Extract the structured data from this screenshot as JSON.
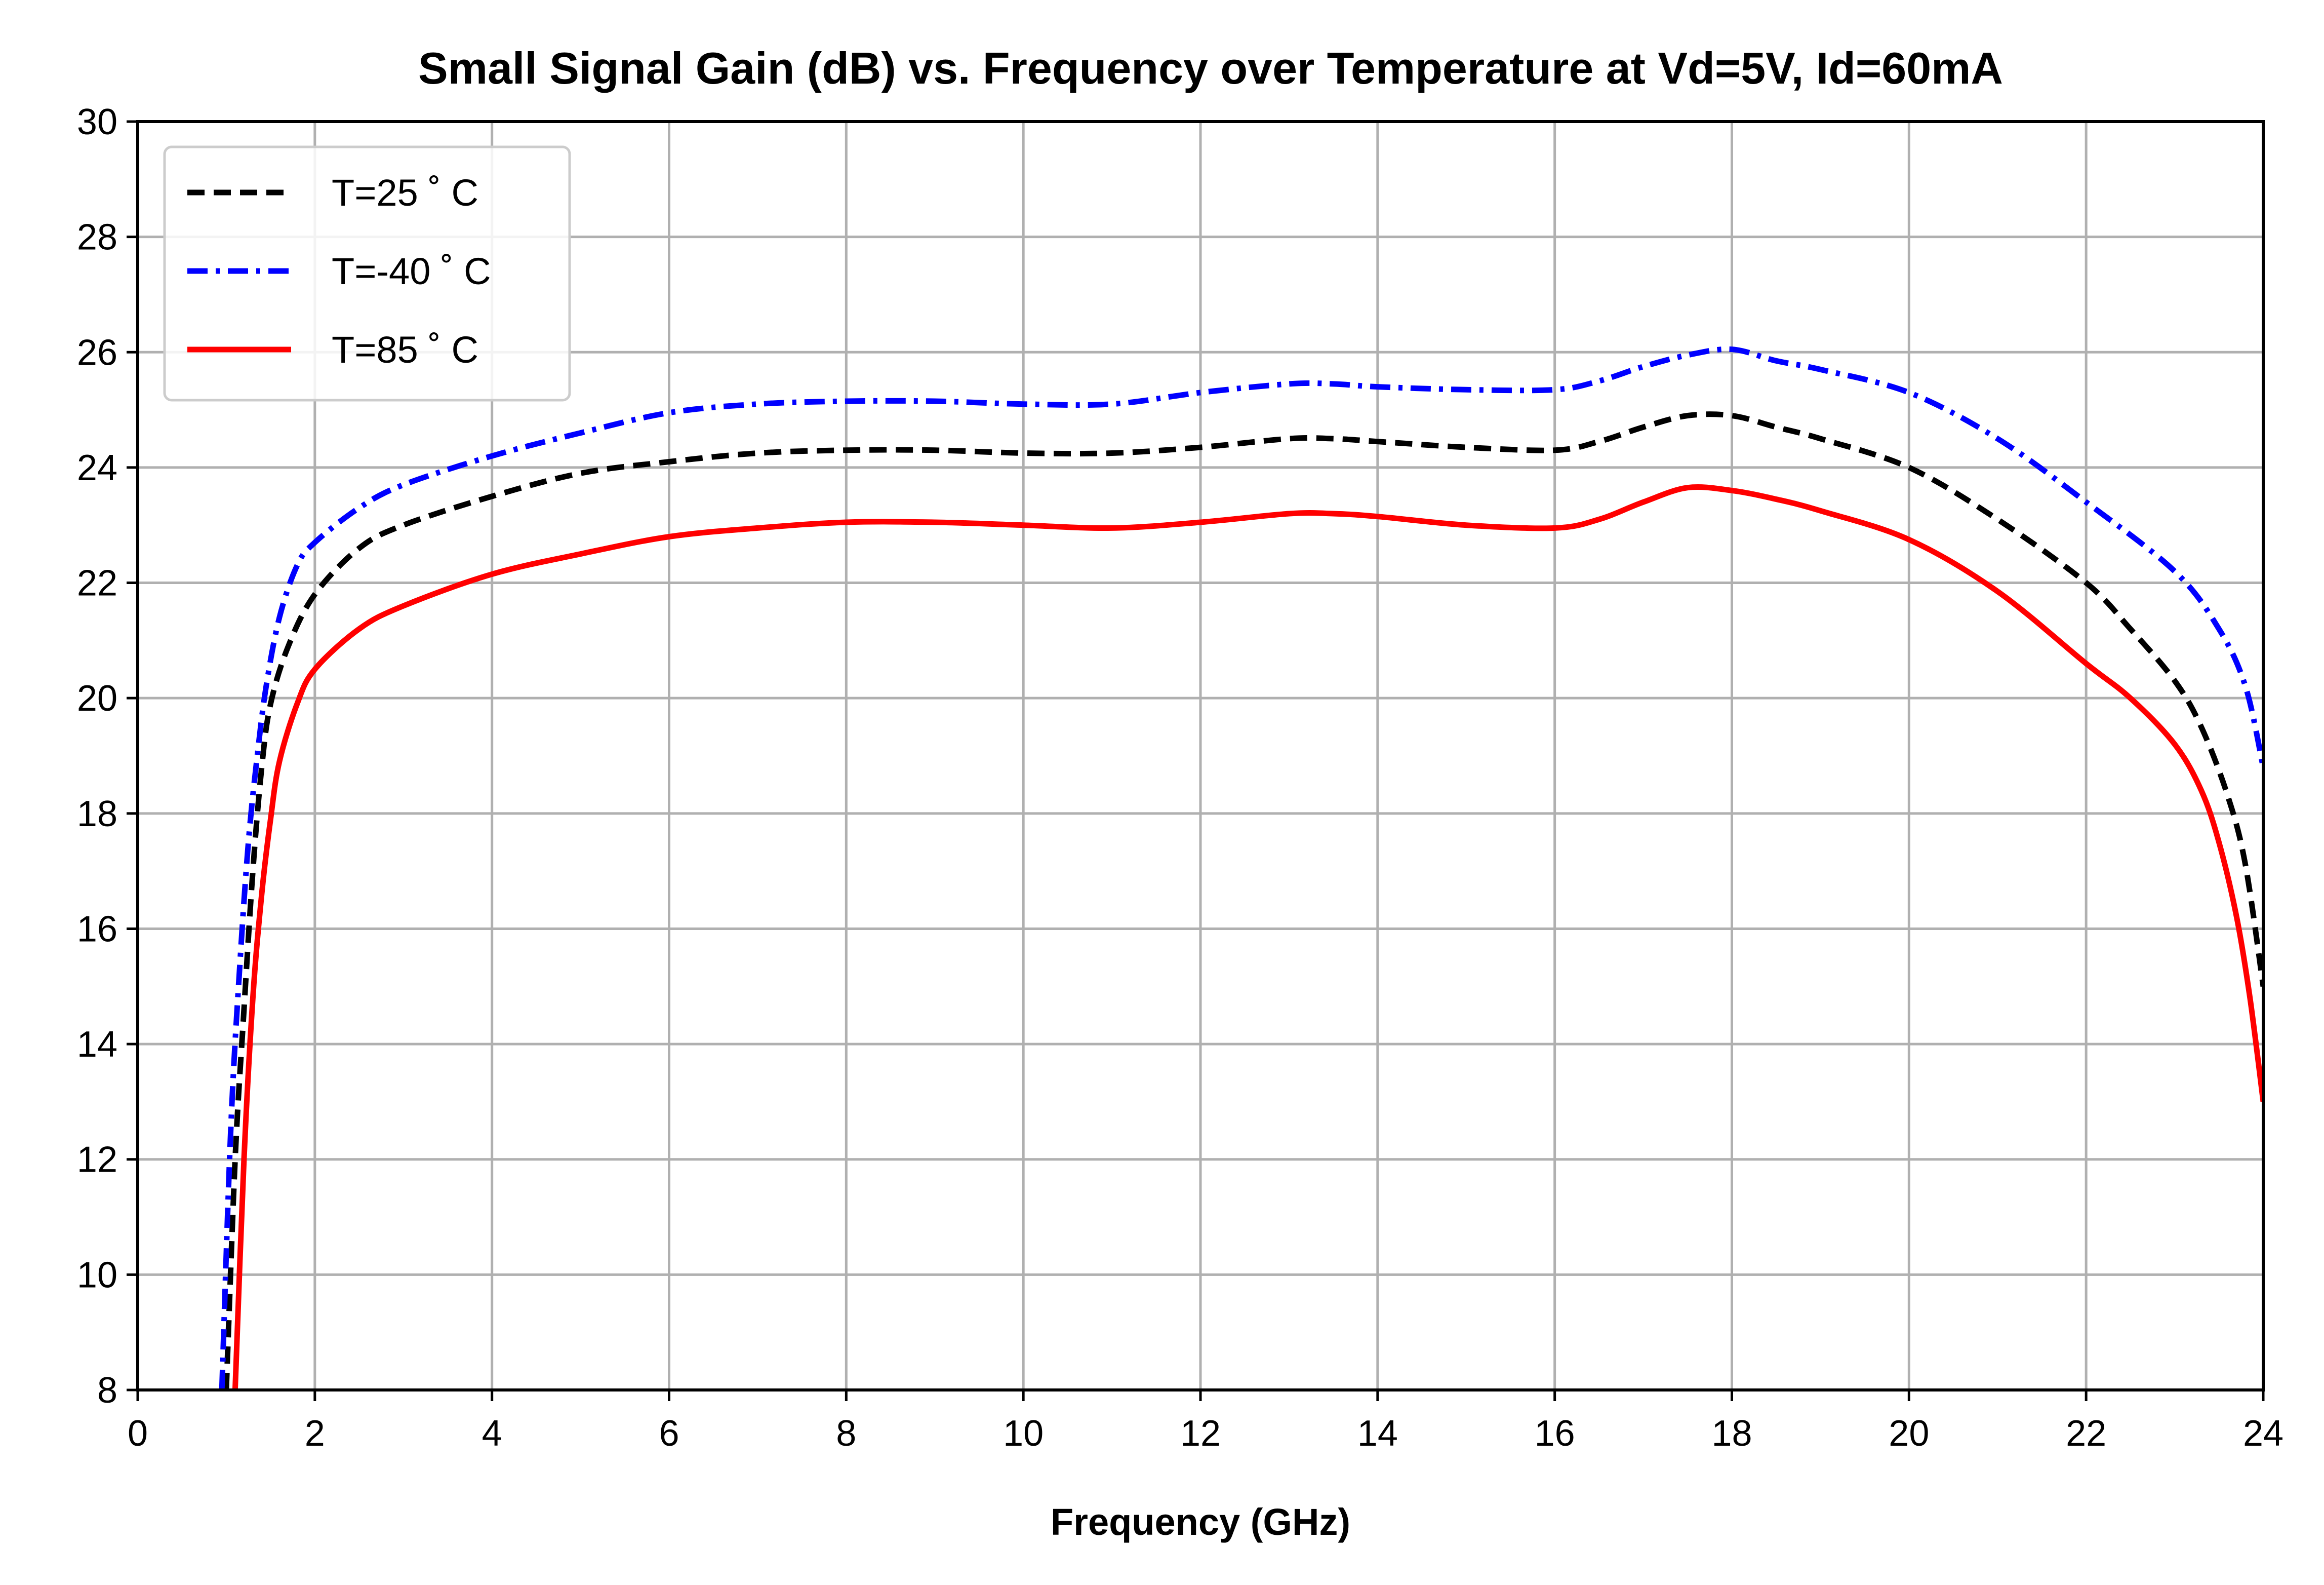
{
  "chart_data": {
    "type": "line",
    "title": "Small Signal Gain (dB) vs. Frequency over Temperature at Vd=5V, Id=60mA",
    "xlabel": "Frequency (GHz)",
    "ylabel": "",
    "xlim": [
      0,
      24
    ],
    "ylim": [
      8,
      30
    ],
    "xticks": [
      0,
      2,
      4,
      6,
      8,
      10,
      12,
      14,
      16,
      18,
      20,
      22,
      24
    ],
    "yticks": [
      8,
      10,
      12,
      14,
      16,
      18,
      20,
      22,
      24,
      26,
      28,
      30
    ],
    "grid": true,
    "legend_position": "top-left",
    "series": [
      {
        "name": "T=25 ˚ C",
        "color": "#000000",
        "line_style": "dashed",
        "x": [
          1.0,
          1.1,
          1.2,
          1.3,
          1.4,
          1.5,
          1.7,
          2.0,
          2.5,
          3.0,
          4.0,
          5.0,
          6.0,
          7.0,
          8.0,
          9.0,
          10.0,
          11.0,
          12.0,
          13.0,
          13.5,
          14.0,
          15.0,
          16.0,
          16.5,
          17.0,
          17.5,
          18.0,
          18.5,
          19.0,
          20.0,
          21.0,
          22.0,
          22.5,
          23.0,
          23.3,
          23.6,
          23.8,
          24.0
        ],
        "y": [
          8.0,
          12.0,
          14.6,
          17.0,
          18.8,
          19.9,
          20.9,
          21.8,
          22.6,
          23.0,
          23.5,
          23.9,
          24.1,
          24.25,
          24.3,
          24.3,
          24.25,
          24.25,
          24.35,
          24.5,
          24.5,
          24.45,
          24.35,
          24.3,
          24.45,
          24.7,
          24.9,
          24.9,
          24.7,
          24.5,
          24.0,
          23.1,
          22.0,
          21.2,
          20.3,
          19.5,
          18.3,
          17.1,
          15.0
        ]
      },
      {
        "name": "T=-40 ˚ C",
        "color": "#0000ff",
        "line_style": "dashdot",
        "x": [
          0.95,
          1.05,
          1.15,
          1.25,
          1.35,
          1.45,
          1.6,
          1.8,
          2.0,
          2.5,
          3.0,
          4.0,
          5.0,
          6.0,
          7.0,
          8.0,
          9.0,
          10.0,
          11.0,
          12.0,
          13.0,
          13.5,
          14.0,
          15.0,
          16.0,
          16.5,
          17.0,
          17.5,
          18.0,
          18.5,
          19.0,
          20.0,
          21.0,
          22.0,
          23.0,
          23.5,
          23.8,
          24.0
        ],
        "y": [
          8.0,
          12.5,
          15.3,
          17.5,
          19.0,
          20.2,
          21.4,
          22.3,
          22.7,
          23.3,
          23.7,
          24.2,
          24.6,
          24.95,
          25.1,
          25.15,
          25.15,
          25.1,
          25.1,
          25.3,
          25.45,
          25.45,
          25.4,
          25.35,
          25.35,
          25.5,
          25.75,
          25.95,
          26.05,
          25.85,
          25.7,
          25.3,
          24.5,
          23.4,
          22.2,
          21.2,
          20.2,
          18.8
        ]
      },
      {
        "name": "T=85 ˚ C",
        "color": "#ff0000",
        "line_style": "solid",
        "x": [
          1.1,
          1.2,
          1.3,
          1.4,
          1.5,
          1.6,
          1.8,
          2.0,
          2.5,
          3.0,
          4.0,
          5.0,
          6.0,
          7.0,
          8.0,
          9.0,
          10.0,
          11.0,
          12.0,
          13.0,
          13.5,
          14.0,
          15.0,
          16.0,
          16.5,
          17.0,
          17.5,
          18.0,
          18.5,
          19.0,
          20.0,
          21.0,
          22.0,
          22.5,
          23.0,
          23.3,
          23.5,
          23.7,
          23.85,
          24.0
        ],
        "y": [
          8.0,
          12.0,
          14.8,
          16.6,
          17.9,
          18.9,
          19.9,
          20.5,
          21.2,
          21.6,
          22.15,
          22.5,
          22.8,
          22.95,
          23.05,
          23.05,
          23.0,
          22.95,
          23.05,
          23.2,
          23.2,
          23.15,
          23.0,
          22.95,
          23.1,
          23.4,
          23.65,
          23.6,
          23.45,
          23.25,
          22.75,
          21.85,
          20.6,
          20.0,
          19.2,
          18.4,
          17.5,
          16.2,
          14.8,
          13.0
        ]
      }
    ]
  }
}
